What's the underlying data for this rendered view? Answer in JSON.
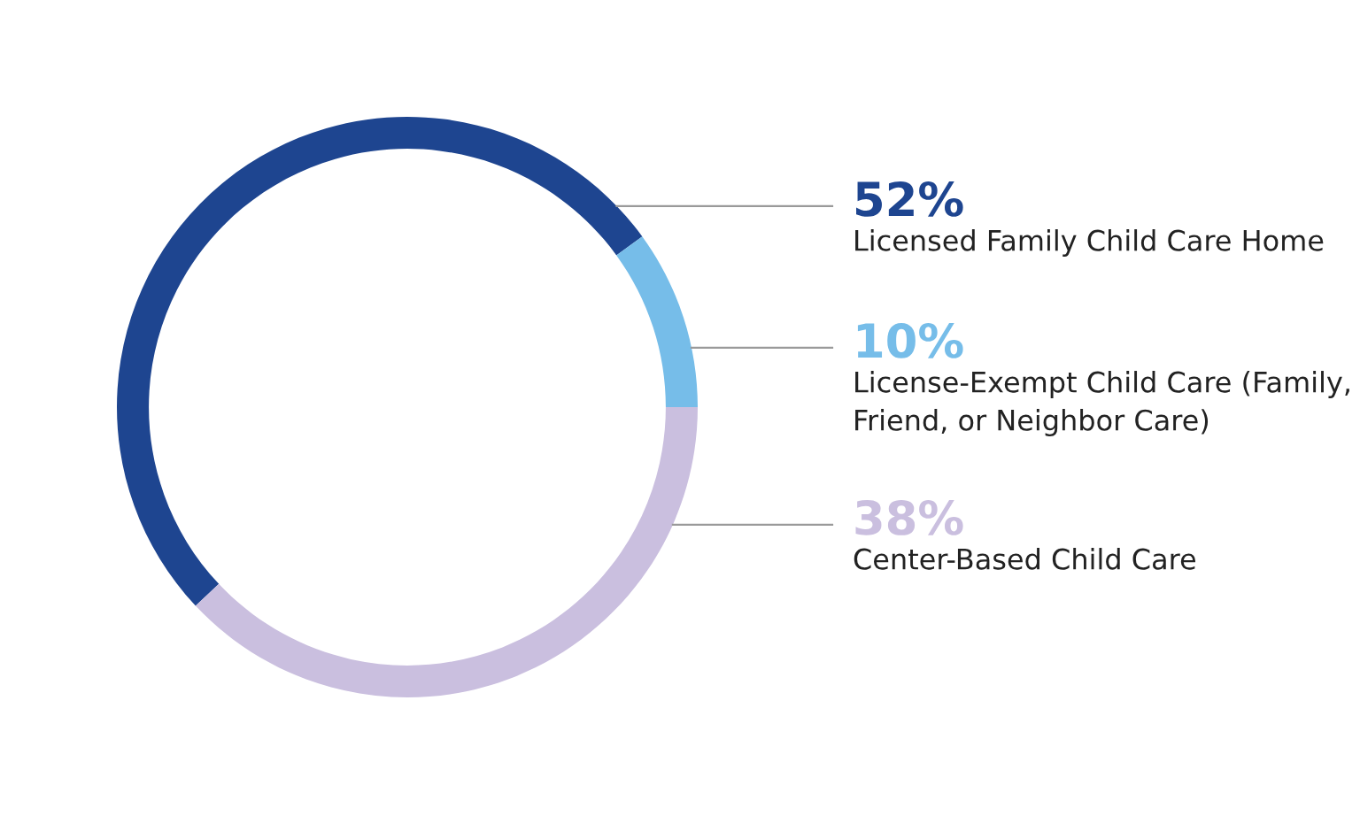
{
  "chart_data": {
    "type": "donut",
    "categories": [
      "Licensed Family Child Care Home",
      "License-Exempt Child Care (Family, Friend, or Neighbor Care)",
      "Center-Based Child Care"
    ],
    "values": [
      52,
      10,
      38
    ],
    "colors": [
      "#1e4590",
      "#76bde9",
      "#cabfdf"
    ],
    "value_labels": [
      "52%",
      "10%",
      "38%"
    ],
    "legend": false
  }
}
